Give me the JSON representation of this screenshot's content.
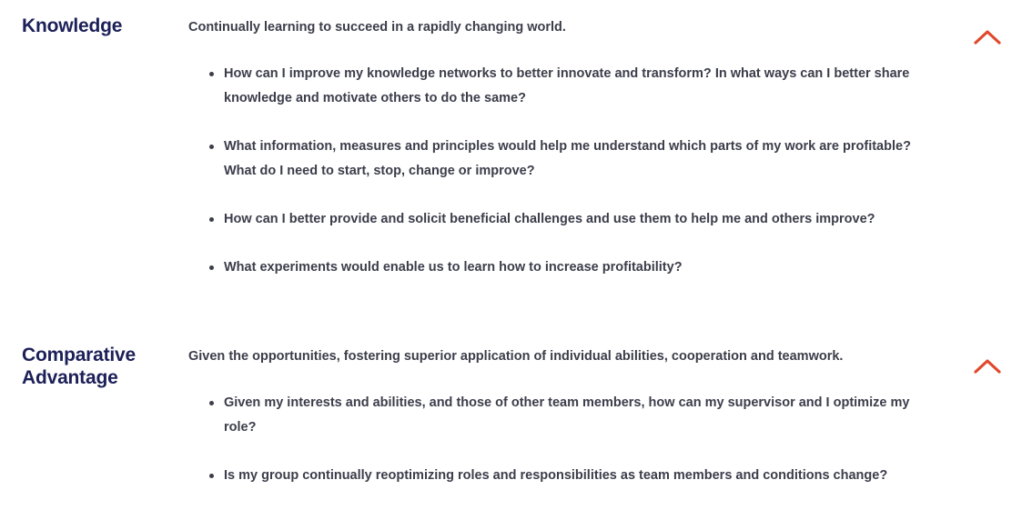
{
  "sections": [
    {
      "id": "knowledge",
      "title": "Knowledge",
      "intro": "Continually learning to succeed in a rapidly changing world.",
      "toggle_icon": "chevron-up-icon",
      "questions": [
        "How can I improve my knowledge networks to better innovate and transform? In what ways can I better share knowledge and motivate others to do the same?",
        "What information, measures and principles would help me understand which parts of my work are profitable? What do I need to start, stop, change or improve?",
        "How can I better provide and solicit beneficial challenges and use them to help me and others improve?",
        "What experiments would enable us to learn how to increase profitability?"
      ]
    },
    {
      "id": "comparative",
      "title": "Comparative Advantage",
      "intro": "Given the opportunities, fostering superior application of individual abilities, cooperation and teamwork.",
      "toggle_icon": "chevron-up-icon",
      "questions": [
        "Given my interests and abilities, and those of other team members, how can my supervisor and I optimize my role?",
        "Is my group continually reoptimizing roles and responsibilities as team members and conditions change?"
      ]
    }
  ],
  "colors": {
    "title": "#1c2058",
    "body_text": "#3b3d4a",
    "accent": "#e0492c",
    "background": "#ffffff"
  }
}
